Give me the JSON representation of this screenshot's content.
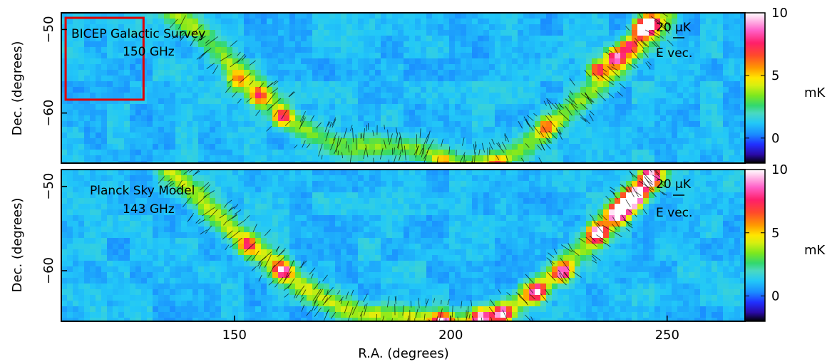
{
  "chart_data": [
    {
      "type": "heatmap",
      "title": "BICEP Galactic Survey",
      "subtitle": "150 GHz",
      "xlabel": "R.A. (degrees)",
      "ylabel": "Dec. (degrees)",
      "xlim": [
        110,
        268
      ],
      "ylim": [
        -48,
        -66
      ],
      "yticks": [
        -60,
        -50
      ],
      "y_tick_labels": [
        "−60",
        "−50"
      ],
      "scale_label": "20 μK",
      "vector_label": "E vec.",
      "highlight_box": {
        "ra": [
          111,
          129
        ],
        "dec": [
          -58.4,
          -48.6
        ],
        "color": "#e00000"
      },
      "ridge": [
        [
          135,
          -47.5
        ],
        [
          140,
          -49.5
        ],
        [
          145,
          -52
        ],
        [
          150,
          -54.5
        ],
        [
          155,
          -57
        ],
        [
          160,
          -59.5
        ],
        [
          165,
          -61.5
        ],
        [
          170,
          -63
        ],
        [
          175,
          -63.8
        ],
        [
          180,
          -64
        ],
        [
          185,
          -64
        ],
        [
          190,
          -64.2
        ],
        [
          195,
          -64.8
        ],
        [
          200,
          -65.6
        ],
        [
          205,
          -66.2
        ],
        [
          210,
          -66
        ],
        [
          215,
          -64.8
        ],
        [
          220,
          -62.8
        ],
        [
          225,
          -60.8
        ],
        [
          230,
          -58.6
        ],
        [
          235,
          -56.4
        ],
        [
          240,
          -53.8
        ],
        [
          245,
          -51.2
        ],
        [
          250,
          -48.4
        ]
      ],
      "hotspots": [
        [
          161,
          -60.5,
          5.5
        ],
        [
          155.5,
          -58,
          4
        ],
        [
          150.5,
          -56.2,
          3.2
        ],
        [
          211,
          -66.2,
          3.8
        ],
        [
          198,
          -66.2,
          3
        ],
        [
          222,
          -61.8,
          3.5
        ],
        [
          234,
          -54.8,
          6
        ],
        [
          238,
          -53.3,
          7
        ],
        [
          241,
          -52,
          5.5
        ],
        [
          244,
          -50,
          7.5
        ],
        [
          246,
          -49.2,
          8
        ]
      ],
      "base_level": 1.0,
      "ridge_peak": 2.5
    },
    {
      "type": "heatmap",
      "title": "Planck Sky Model",
      "subtitle": "143 GHz",
      "xlabel": "R.A. (degrees)",
      "ylabel": "Dec. (degrees)",
      "xlim": [
        110,
        268
      ],
      "ylim": [
        -48,
        -66
      ],
      "xticks": [
        150,
        200,
        250
      ],
      "yticks": [
        -60,
        -50
      ],
      "y_tick_labels": [
        "−60",
        "−50"
      ],
      "scale_label": "20 μK",
      "vector_label": "E vec.",
      "ridge": [
        [
          135,
          -48
        ],
        [
          140,
          -50.5
        ],
        [
          145,
          -53
        ],
        [
          150,
          -55.5
        ],
        [
          155,
          -57.5
        ],
        [
          160,
          -59.5
        ],
        [
          165,
          -61.5
        ],
        [
          170,
          -63.2
        ],
        [
          175,
          -64.6
        ],
        [
          180,
          -65.2
        ],
        [
          185,
          -65.4
        ],
        [
          190,
          -65.6
        ],
        [
          195,
          -66
        ],
        [
          200,
          -66.2
        ],
        [
          205,
          -66.2
        ],
        [
          210,
          -65.6
        ],
        [
          215,
          -64
        ],
        [
          220,
          -62
        ],
        [
          225,
          -60
        ],
        [
          230,
          -57.6
        ],
        [
          235,
          -55
        ],
        [
          240,
          -52.4
        ],
        [
          245,
          -50
        ],
        [
          248,
          -48.4
        ]
      ],
      "hotspots": [
        [
          161,
          -60,
          6
        ],
        [
          153,
          -57,
          4
        ],
        [
          198,
          -66,
          6
        ],
        [
          207,
          -65.6,
          6.5
        ],
        [
          212,
          -65.2,
          7
        ],
        [
          220,
          -62.6,
          6
        ],
        [
          226,
          -60.2,
          6
        ],
        [
          234,
          -55.6,
          7.5
        ],
        [
          238.5,
          -53.2,
          9
        ],
        [
          241,
          -52,
          9.5
        ],
        [
          243,
          -51,
          8
        ],
        [
          246,
          -49,
          9
        ]
      ],
      "base_level": 1.0,
      "ridge_peak": 3.0
    }
  ],
  "colorbar": {
    "label": "mK",
    "range": [
      -2,
      10
    ],
    "ticks": [
      10,
      5,
      0
    ],
    "stops": [
      [
        -2,
        "#000000"
      ],
      [
        -1.3,
        "#2a0aa8"
      ],
      [
        -0.5,
        "#2030ff"
      ],
      [
        0.3,
        "#1a8cff"
      ],
      [
        1.2,
        "#22c8f8"
      ],
      [
        2.0,
        "#4ad9c0"
      ],
      [
        2.6,
        "#32d86e"
      ],
      [
        3.4,
        "#7de81e"
      ],
      [
        4.2,
        "#d6ef10"
      ],
      [
        4.8,
        "#ffe600"
      ],
      [
        5.6,
        "#ff9900"
      ],
      [
        6.6,
        "#ff4a2a"
      ],
      [
        7.6,
        "#ff1f6a"
      ],
      [
        8.6,
        "#ff60c8"
      ],
      [
        10,
        "#ffffff"
      ]
    ]
  },
  "x_tick_labels": [
    "150",
    "200",
    "250"
  ],
  "panel_colors": {
    "frame": "#000000",
    "box": "#e00000",
    "vector": "#000000"
  }
}
